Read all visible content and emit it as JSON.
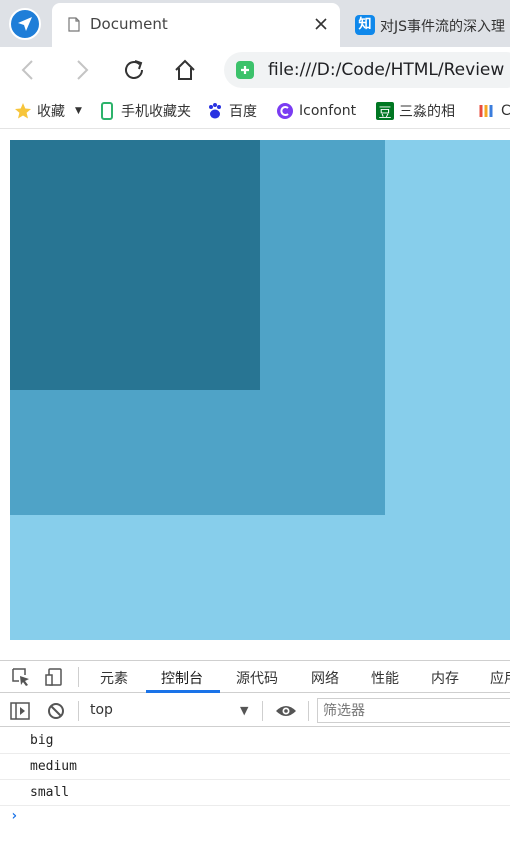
{
  "tabs": {
    "active": {
      "title": "Document"
    },
    "inactive": {
      "icon_text": "知",
      "title": "对JS事件流的深入理"
    }
  },
  "toolbar": {
    "url": "file:///D:/Code/HTML/Review"
  },
  "bookmarks": [
    {
      "label": "收藏",
      "icon": "star-icon"
    },
    {
      "label": "手机收藏夹",
      "icon": "phone-icon"
    },
    {
      "label": "百度",
      "icon": "baidu-paw-icon"
    },
    {
      "label": "Iconfont",
      "icon": "iconfont-icon"
    },
    {
      "label": "三淼的相",
      "icon": "douban-icon",
      "icon_text": "豆"
    },
    {
      "label": "C",
      "icon": "colorful-logo-icon"
    }
  ],
  "boxes": {
    "big": {
      "color": "#87ceeb"
    },
    "medium": {
      "color": "#4fa3c7"
    },
    "small": {
      "color": "#287593"
    }
  },
  "devtools": {
    "tabs": [
      "元素",
      "控制台",
      "源代码",
      "网络",
      "性能",
      "内存",
      "应用"
    ],
    "active_tab": "控制台",
    "context": "top",
    "filter_placeholder": "筛选器",
    "logs": [
      "big",
      "medium",
      "small"
    ],
    "prompt": "›"
  }
}
